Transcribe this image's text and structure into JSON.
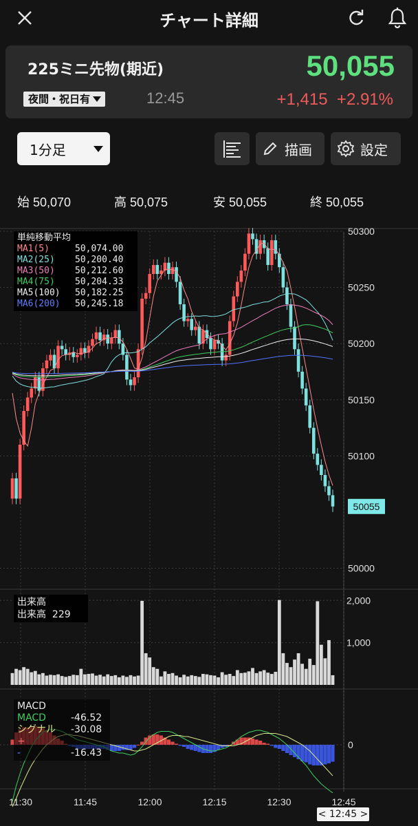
{
  "header": {
    "title": "チャート詳細"
  },
  "quote": {
    "name": "225ミニ先物(期近)",
    "price": "50,055",
    "session": "夜間・祝日有",
    "time": "12:45",
    "change": "+1,415",
    "change_pct": "+2.91%"
  },
  "toolbar": {
    "interval": "1分足",
    "draw_label": "描画",
    "settings_label": "設定"
  },
  "ohlc": [
    {
      "label": "始",
      "value": "50,070"
    },
    {
      "label": "高",
      "value": "50,075"
    },
    {
      "label": "安",
      "value": "50,055"
    },
    {
      "label": "終",
      "value": "50,055"
    }
  ],
  "ma_legend": {
    "title": "単純移動平均",
    "rows": [
      {
        "name": "MA1(5)",
        "value": "50,074.00",
        "color": "#ff8a8a"
      },
      {
        "name": "MA2(25)",
        "value": "50,200.40",
        "color": "#7fe0e0"
      },
      {
        "name": "MA3(50)",
        "value": "50,212.60",
        "color": "#ee7fbe"
      },
      {
        "name": "MA4(75)",
        "value": "50,204.33",
        "color": "#3fcf5f"
      },
      {
        "name": "MA5(100)",
        "value": "50,182.25",
        "color": "#f0f0f0"
      },
      {
        "name": "MA6(200)",
        "value": "50,245.18",
        "color": "#4f74ff"
      }
    ]
  },
  "volume_legend": {
    "title": "出来高",
    "label": "出来高",
    "value": "229"
  },
  "macd_legend": {
    "title": "MACD",
    "macd_label": "MACD",
    "macd_value": "-46.52",
    "signal_label": "シグナル",
    "signal_value": "-30.08",
    "plus_label": "+",
    "minus_label": "-",
    "hist_value": "-16.43"
  },
  "last_price_label": "50055",
  "crosshair_time": "< 12:45 >",
  "chart_data": {
    "type": "candlestick",
    "price_axis": {
      "ticks": [
        "50300",
        "50250",
        "50200",
        "50150",
        "50100",
        "50000"
      ],
      "ylim": [
        49985,
        50300
      ]
    },
    "volume_axis": {
      "ticks": [
        "2,000",
        "1,000"
      ],
      "ylim": [
        0,
        2200
      ]
    },
    "macd_axis": {
      "ticks": [
        "0"
      ]
    },
    "x_ticks": [
      "11:30",
      "11:45",
      "12:00",
      "12:15",
      "12:30",
      "12:45"
    ],
    "closes": [
      50080,
      50062,
      50110,
      50140,
      50152,
      50160,
      50170,
      50158,
      50178,
      50185,
      50190,
      50178,
      50198,
      50195,
      50190,
      50192,
      50188,
      50190,
      50196,
      50192,
      50198,
      50204,
      50210,
      50203,
      50208,
      50200,
      50205,
      50212,
      50200,
      50190,
      50168,
      50163,
      50170,
      50195,
      50240,
      50245,
      50262,
      50270,
      50262,
      50265,
      50272,
      50262,
      50268,
      50255,
      50235,
      50220,
      50222,
      50212,
      50215,
      50200,
      50212,
      50205,
      50195,
      50203,
      50200,
      50185,
      50190,
      50220,
      50242,
      50255,
      50265,
      50280,
      50298,
      50293,
      50280,
      50292,
      50285,
      50270,
      50292,
      50280,
      50268,
      50250,
      50235,
      50215,
      50195,
      50175,
      50160,
      50145,
      50125,
      50102,
      50092,
      50083,
      50073,
      50065,
      50055
    ],
    "volume": [
      280,
      380,
      350,
      420,
      380,
      300,
      330,
      250,
      280,
      220,
      240,
      230,
      250,
      210,
      190,
      210,
      240,
      230,
      380,
      250,
      260,
      270,
      220,
      240,
      200,
      250,
      210,
      230,
      180,
      220,
      190,
      230,
      200,
      220,
      1990,
      750,
      650,
      420,
      380,
      200,
      320,
      260,
      280,
      220,
      180,
      240,
      200,
      230,
      210,
      190,
      260,
      250,
      230,
      220,
      180,
      300,
      240,
      260,
      210,
      350,
      280,
      290,
      320,
      400,
      280,
      320,
      350,
      290,
      260,
      310,
      2010,
      750,
      520,
      420,
      600,
      750,
      500,
      380,
      620,
      470,
      1980,
      950,
      630,
      1060,
      229
    ],
    "macd": [
      -55,
      -40,
      -28,
      -18,
      -10,
      -2,
      4,
      8,
      12,
      14,
      15,
      15,
      14,
      13,
      11,
      9,
      7,
      5,
      4,
      3,
      2,
      1,
      0,
      -1,
      -2,
      -4,
      -6,
      -7,
      -8,
      -8,
      -9,
      -10,
      -9,
      -6,
      -2,
      3,
      7,
      10,
      12,
      13,
      13,
      13,
      12,
      10,
      8,
      6,
      4,
      2,
      0,
      -2,
      -4,
      -5,
      -6,
      -6,
      -5,
      -4,
      -3,
      -1,
      2,
      5,
      8,
      10,
      12,
      13,
      14,
      14,
      13,
      12,
      10,
      8,
      6,
      3,
      0,
      -4,
      -8,
      -12,
      -16,
      -20,
      -25,
      -30,
      -34,
      -38,
      -41,
      -44,
      -46.5
    ],
    "signal": [
      -60,
      -52,
      -43,
      -35,
      -27,
      -20,
      -14,
      -9,
      -4,
      0,
      3,
      6,
      8,
      9,
      10,
      10,
      9,
      9,
      8,
      7,
      6,
      5,
      4,
      3,
      2,
      1,
      0,
      -1,
      -2,
      -3,
      -4,
      -5,
      -6,
      -6,
      -5,
      -4,
      -2,
      0,
      2,
      4,
      6,
      8,
      9,
      9,
      9,
      8,
      8,
      7,
      6,
      5,
      4,
      3,
      2,
      1,
      0,
      -1,
      -1,
      -1,
      -1,
      0,
      1,
      3,
      5,
      7,
      9,
      10,
      11,
      11,
      11,
      11,
      10,
      9,
      8,
      6,
      4,
      2,
      0,
      -3,
      -6,
      -10,
      -14,
      -18,
      -22,
      -26,
      -30.08
    ]
  }
}
